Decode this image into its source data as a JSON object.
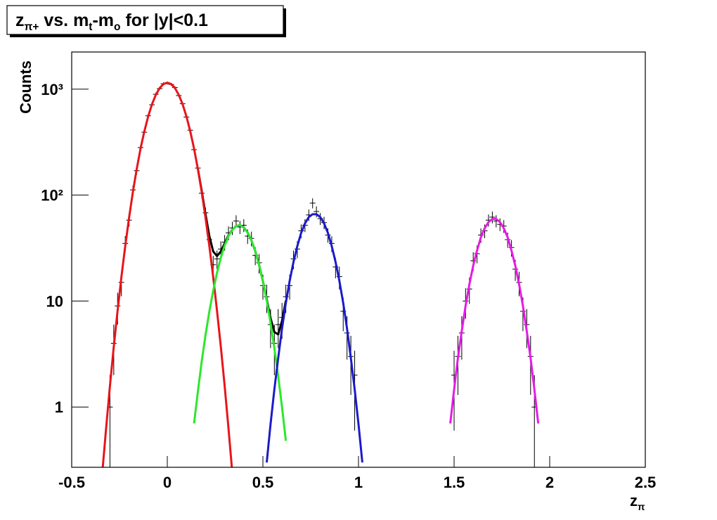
{
  "chart_data": {
    "type": "errorbar",
    "title": [
      "z",
      "π+",
      " vs. m",
      "t",
      "-m",
      "o",
      " for |y|<0.1"
    ],
    "x_label": [
      "z",
      "π"
    ],
    "y_label": "Counts",
    "log_y": true,
    "xlim": [
      -0.5,
      2.5
    ],
    "ylim": [
      0.27,
      2240
    ],
    "xticks": [
      -0.5,
      0,
      0.5,
      1,
      1.5,
      2,
      2.5
    ],
    "yticks": [
      1,
      10,
      {
        "value": 100,
        "label": "10²"
      },
      {
        "value": 1000,
        "label": "10³"
      }
    ],
    "points": {
      "color": "#000000",
      "x": [
        -0.3,
        -0.28,
        -0.26,
        -0.24,
        -0.22,
        -0.2,
        -0.18,
        -0.16,
        -0.14,
        -0.12,
        -0.1,
        -0.08,
        -0.06,
        -0.04,
        -0.02,
        0,
        0.02,
        0.04,
        0.06,
        0.08,
        0.1,
        0.12,
        0.14,
        0.16,
        0.18,
        0.2,
        0.22,
        0.24,
        0.26,
        0.28,
        0.3,
        0.32,
        0.34,
        0.36,
        0.38,
        0.4,
        0.42,
        0.44,
        0.46,
        0.48,
        0.5,
        0.52,
        0.54,
        0.56,
        0.58,
        0.6,
        0.62,
        0.64,
        0.66,
        0.68,
        0.7,
        0.72,
        0.74,
        0.76,
        0.78,
        0.8,
        0.82,
        0.84,
        0.86,
        0.88,
        0.9,
        0.92,
        0.94,
        0.96,
        0.98,
        1.5,
        1.52,
        1.54,
        1.56,
        1.58,
        1.6,
        1.62,
        1.64,
        1.66,
        1.68,
        1.7,
        1.72,
        1.74,
        1.76,
        1.78,
        1.8,
        1.82,
        1.84,
        1.86,
        1.88,
        1.9,
        1.92
      ],
      "values": [
        1,
        4,
        9,
        15,
        35,
        58,
        112,
        170,
        281,
        392,
        560,
        712,
        895,
        1010,
        1125,
        1140,
        1108,
        1035,
        870,
        728,
        545,
        410,
        268,
        180,
        104,
        68,
        38,
        22,
        25,
        31,
        36,
        44,
        49,
        57,
        50,
        52,
        41,
        39,
        27,
        23,
        14,
        11,
        6,
        4,
        6,
        7,
        11,
        14,
        25,
        31,
        46,
        52,
        65,
        84,
        70,
        60,
        55,
        42,
        35,
        21,
        17,
        8,
        5,
        3,
        2,
        2,
        3,
        5,
        10,
        13,
        24,
        28,
        42,
        46,
        58,
        62,
        57,
        53,
        51,
        38,
        32,
        20,
        15,
        8,
        6,
        3,
        1
      ],
      "errors": [
        1,
        2,
        3,
        3.9,
        5.9,
        7.6,
        10.6,
        13,
        16.8,
        19.8,
        23.7,
        26.7,
        29.9,
        31.8,
        33.5,
        33.8,
        33.3,
        32.2,
        29.5,
        27,
        23.3,
        20.2,
        16.4,
        13.4,
        10.2,
        8.2,
        6.2,
        4.7,
        5,
        5.6,
        6,
        6.6,
        7,
        7.5,
        7.1,
        7.2,
        6.4,
        6.2,
        5.2,
        4.8,
        3.7,
        3.3,
        2.4,
        2,
        2.4,
        2.6,
        3.3,
        3.7,
        5,
        5.6,
        6.8,
        7.2,
        8.1,
        9.2,
        8.4,
        7.7,
        7.4,
        6.5,
        5.9,
        4.6,
        4.1,
        2.8,
        2.2,
        1.7,
        1.4,
        1.4,
        1.7,
        2.2,
        3.2,
        3.6,
        4.9,
        5.3,
        6.5,
        6.8,
        7.6,
        7.9,
        7.5,
        7.3,
        7.1,
        6.2,
        5.7,
        4.5,
        3.9,
        2.8,
        2.4,
        1.7,
        1
      ]
    },
    "fits": [
      {
        "color": "#000000",
        "x": [
          0.16,
          0.18,
          0.2,
          0.22,
          0.24,
          0.26,
          0.28,
          0.3,
          0.32,
          0.34,
          0.36,
          0.38,
          0.4,
          0.42,
          0.44,
          0.46,
          0.48,
          0.5,
          0.52,
          0.54,
          0.56,
          0.58,
          0.6,
          0.62
        ],
        "values": [
          177,
          110,
          66,
          41,
          29.4,
          26.6,
          29.4,
          35,
          41.6,
          47.2,
          51,
          52,
          49.5,
          44.4,
          37.4,
          29.6,
          22,
          15.4,
          10.4,
          6.9,
          5.1,
          4.85,
          6.5,
          10.1
        ]
      },
      {
        "color": "#e8141a",
        "x": [
          -0.34,
          -0.32,
          -0.3,
          -0.28,
          -0.26,
          -0.24,
          -0.22,
          -0.2,
          -0.18,
          -0.16,
          -0.14,
          -0.12,
          -0.1,
          -0.08,
          -0.06,
          -0.04,
          -0.02,
          0,
          0.02,
          0.04,
          0.06,
          0.08,
          0.1,
          0.12,
          0.14,
          0.16,
          0.18,
          0.2,
          0.22,
          0.24,
          0.26,
          0.28,
          0.3,
          0.32,
          0.34
        ],
        "values": [
          0.24,
          0.63,
          1.58,
          3.7,
          8.1,
          16.9,
          33,
          61,
          107,
          176,
          274,
          400,
          553,
          720,
          883,
          1023,
          1117,
          1150,
          1117,
          1023,
          883,
          720,
          553,
          400,
          274,
          176,
          107,
          61,
          33,
          16.9,
          8.1,
          3.7,
          1.58,
          0.63,
          0.24
        ]
      },
      {
        "color": "#2be82b",
        "x": [
          0.14,
          0.16,
          0.18,
          0.2,
          0.22,
          0.24,
          0.26,
          0.28,
          0.3,
          0.32,
          0.34,
          0.36,
          0.38,
          0.4,
          0.42,
          0.44,
          0.46,
          0.48,
          0.5,
          0.52,
          0.54,
          0.56,
          0.58,
          0.6,
          0.62
        ],
        "values": [
          0.7,
          1.4,
          2.7,
          4.8,
          8,
          12.5,
          18.5,
          25.7,
          33.5,
          41,
          47,
          51,
          52,
          49.5,
          44.4,
          37.4,
          29.6,
          22,
          15.3,
          10.1,
          6.2,
          3.6,
          1.95,
          1,
          0.48
        ]
      },
      {
        "color": "#1a1acc",
        "x": [
          0.52,
          0.54,
          0.56,
          0.58,
          0.6,
          0.62,
          0.64,
          0.66,
          0.68,
          0.7,
          0.72,
          0.74,
          0.76,
          0.78,
          0.8,
          0.82,
          0.84,
          0.86,
          0.88,
          0.9,
          0.92,
          0.94,
          0.96,
          0.98,
          1,
          1.02
        ],
        "values": [
          0.3,
          0.69,
          1.47,
          2.9,
          5.5,
          9.6,
          15.5,
          23.4,
          33,
          44,
          54,
          62,
          66,
          66,
          62,
          54,
          44,
          33,
          23.4,
          15.5,
          9.6,
          5.5,
          2.9,
          1.47,
          0.69,
          0.3
        ]
      },
      {
        "color": "#e61ae6",
        "x": [
          1.48,
          1.5,
          1.52,
          1.54,
          1.56,
          1.58,
          1.6,
          1.62,
          1.64,
          1.66,
          1.68,
          1.7,
          1.72,
          1.74,
          1.76,
          1.78,
          1.8,
          1.82,
          1.84,
          1.86,
          1.88,
          1.9,
          1.92,
          1.94
        ],
        "values": [
          0.7,
          1.46,
          2.9,
          5.2,
          9,
          14.4,
          21.6,
          30,
          40,
          48.6,
          55.6,
          59.5,
          59.5,
          55.6,
          48.6,
          40,
          30,
          21.6,
          14.4,
          9,
          5.2,
          2.9,
          1.46,
          0.7
        ]
      }
    ]
  }
}
